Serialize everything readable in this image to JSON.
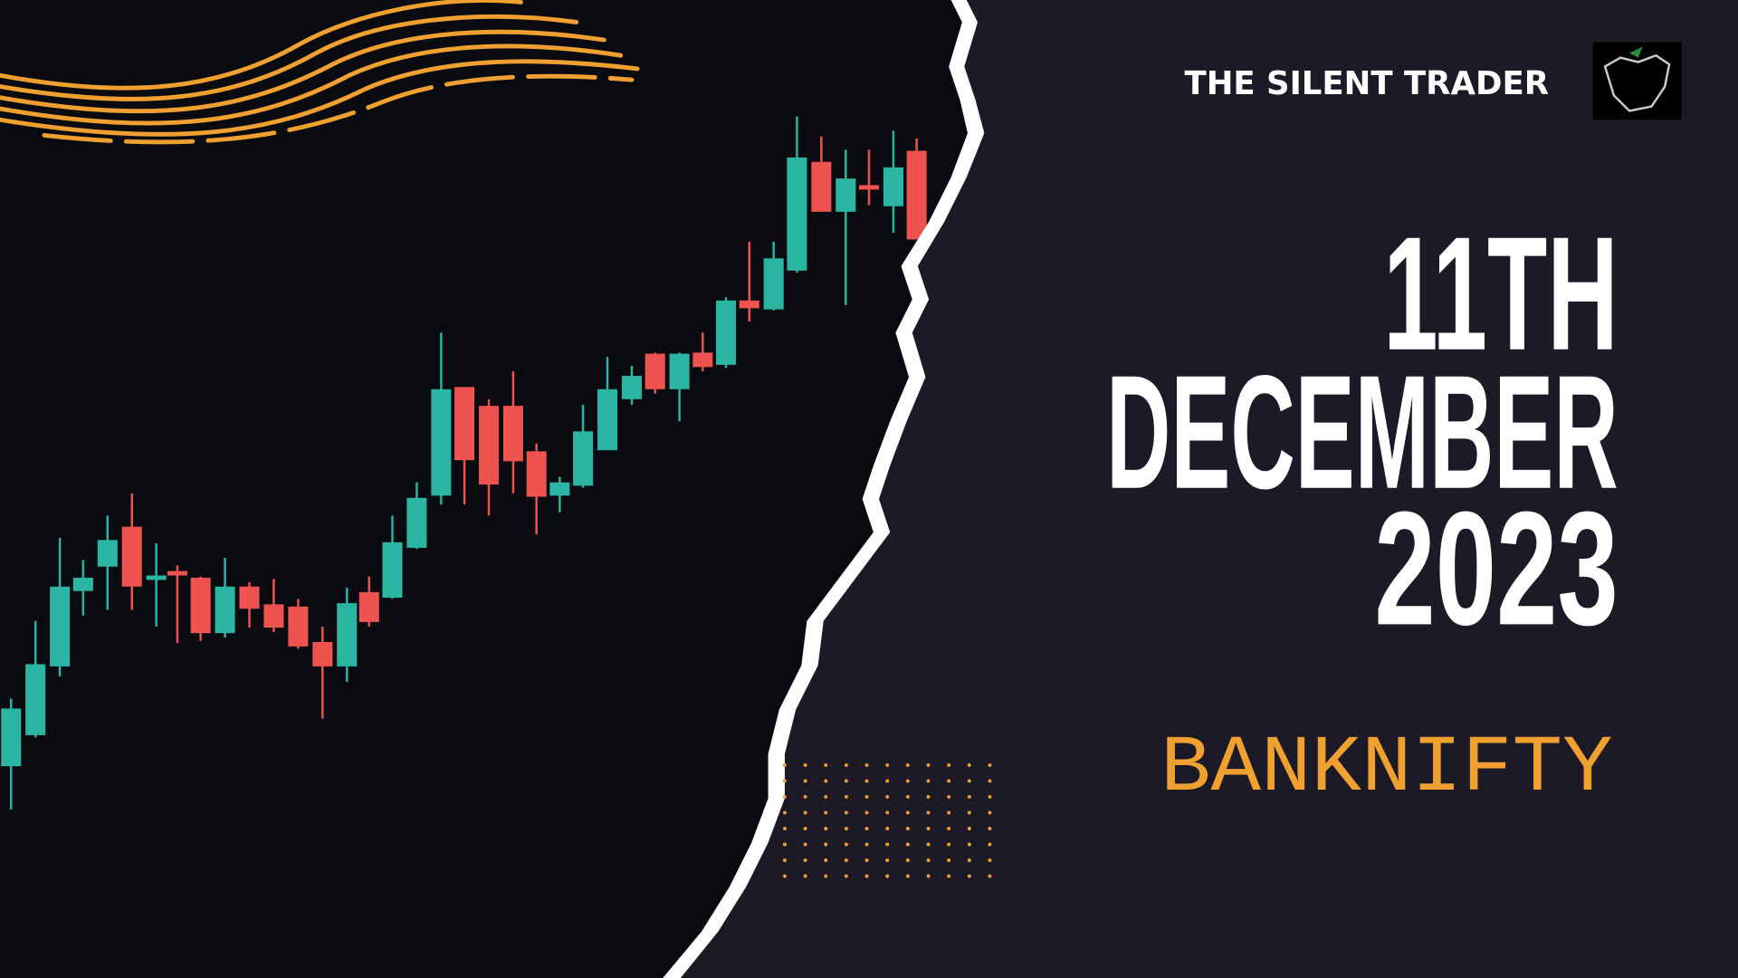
{
  "brand": "THE SILENT TRADER",
  "headline": {
    "line1": "11TH",
    "line2": "DECEMBER",
    "line3": "2023"
  },
  "subject": "BANKNIFTY"
}
